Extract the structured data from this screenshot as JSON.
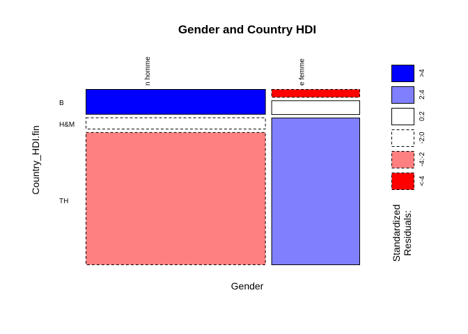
{
  "chart_data": {
    "type": "mosaic",
    "title": "Gender and Country HDI",
    "xlabel": "Gender",
    "ylabel": "Country_HDI.fin",
    "x_categories": [
      "n homme",
      "e femme"
    ],
    "y_categories": [
      "B",
      "H&M",
      "TH"
    ],
    "column_proportions": [
      0.67,
      0.33
    ],
    "cells": [
      {
        "gender": "n homme",
        "hdi": "B",
        "proportion": 0.15,
        "residual_class": ">4",
        "fill": "#0000ff",
        "border": "solid"
      },
      {
        "gender": "n homme",
        "hdi": "H&M",
        "proportion": 0.07,
        "residual_class": "-2:0",
        "fill": "#ffffff",
        "border": "dashed"
      },
      {
        "gender": "n homme",
        "hdi": "TH",
        "proportion": 0.78,
        "residual_class": "-4:-2",
        "fill": "#ff8080",
        "border": "dashed"
      },
      {
        "gender": "e femme",
        "hdi": "B",
        "proportion": 0.05,
        "residual_class": "<-4",
        "fill": "#ff0000",
        "border": "dashed"
      },
      {
        "gender": "e femme",
        "hdi": "H&M",
        "proportion": 0.085,
        "residual_class": "0:2",
        "fill": "#ffffff",
        "border": "solid"
      },
      {
        "gender": "e femme",
        "hdi": "TH",
        "proportion": 0.865,
        "residual_class": "2:4",
        "fill": "#8080ff",
        "border": "solid"
      }
    ],
    "legend": {
      "title": [
        "Standardized",
        "Residuals:"
      ],
      "entries": [
        {
          "label": ">4",
          "fill": "#0000ff",
          "border": "solid"
        },
        {
          "label": "2:4",
          "fill": "#8080ff",
          "border": "solid"
        },
        {
          "label": "0:2",
          "fill": "#ffffff",
          "border": "solid"
        },
        {
          "label": "-2:0",
          "fill": "#ffffff",
          "border": "dashed"
        },
        {
          "label": "-4:-2",
          "fill": "#ff8080",
          "border": "dashed"
        },
        {
          "label": "<-4",
          "fill": "#ff0000",
          "border": "dashed"
        }
      ]
    }
  }
}
